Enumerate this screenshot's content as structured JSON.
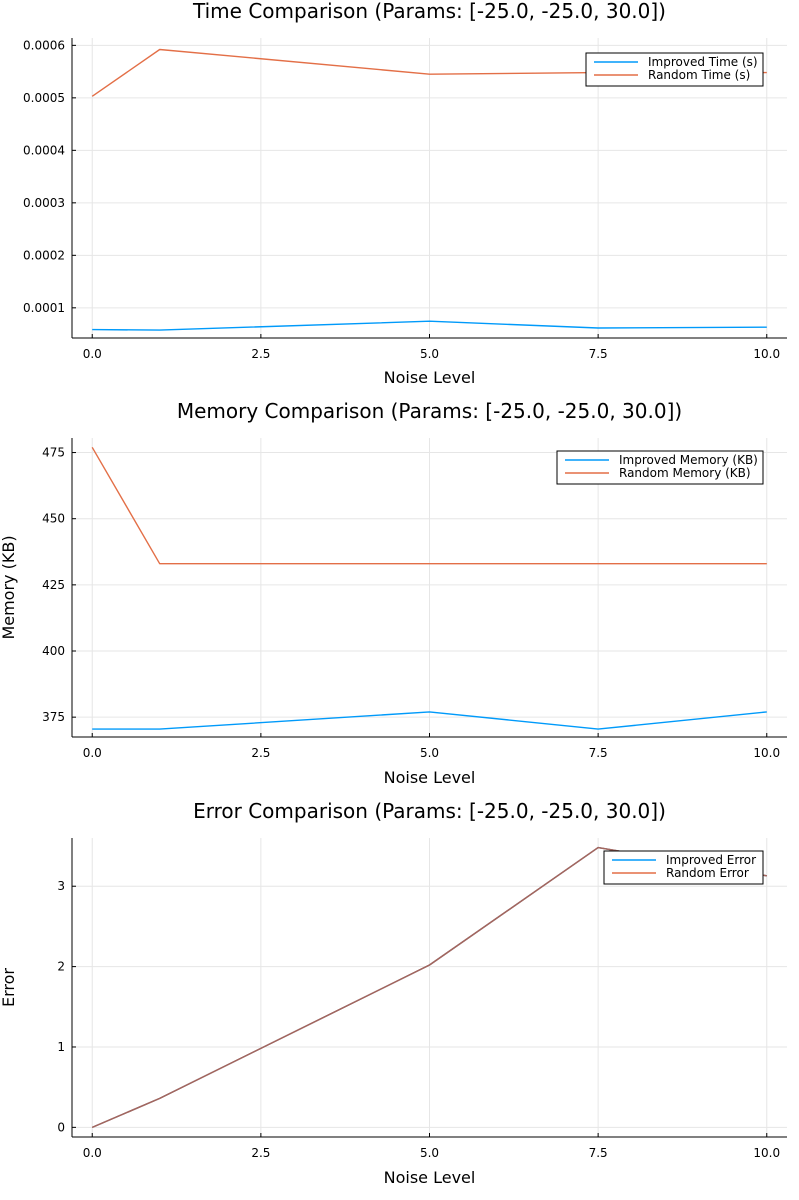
{
  "colors": {
    "improved": "#009AFA",
    "random": "#E36F47",
    "overlap": "#A2665F",
    "background": "#ffffff",
    "grid": "#e6e6e6"
  },
  "chart_data": [
    {
      "type": "line",
      "title": "Time Comparison (Params: [-25.0, -25.0, 30.0])",
      "xlabel": "Noise Level",
      "ylabel": "",
      "xlim": [
        -0.3,
        10.3
      ],
      "ylim": [
        4.25e-05,
        0.000614
      ],
      "xticks": [
        0,
        2.5,
        5,
        7.5,
        10
      ],
      "xtick_labels": [
        "0.0",
        "2.5",
        "5.0",
        "7.5",
        "10.0"
      ],
      "yticks": [
        0.0001,
        0.0002,
        0.0003,
        0.0004,
        0.0005,
        0.0006
      ],
      "ytick_labels": [
        "0.0001",
        "0.0002",
        "0.0003",
        "0.0004",
        "0.0005",
        "0.0006"
      ],
      "grid": true,
      "legend_position": "top-right",
      "x": [
        0,
        1,
        5,
        7.5,
        10
      ],
      "series": [
        {
          "name": "Improved Time (s)",
          "color": "#009AFA",
          "values": [
            5.85e-05,
            5.75e-05,
            7.45e-05,
            6.15e-05,
            6.3e-05
          ]
        },
        {
          "name": "Random Time (s)",
          "color": "#E36F47",
          "values": [
            0.000503,
            0.000592,
            0.000545,
            0.000548,
            0.000548
          ]
        }
      ]
    },
    {
      "type": "line",
      "title": "Memory Comparison (Params: [-25.0, -25.0, 30.0])",
      "xlabel": "Noise Level",
      "ylabel": "Memory (KB)",
      "xlim": [
        -0.3,
        10.3
      ],
      "ylim": [
        367.5,
        480.5
      ],
      "xticks": [
        0,
        2.5,
        5,
        7.5,
        10
      ],
      "xtick_labels": [
        "0.0",
        "2.5",
        "5.0",
        "7.5",
        "10.0"
      ],
      "yticks": [
        375,
        400,
        425,
        450,
        475
      ],
      "ytick_labels": [
        "375",
        "400",
        "425",
        "450",
        "475"
      ],
      "grid": true,
      "legend_position": "top-right",
      "x": [
        0,
        1,
        5,
        7.5,
        10
      ],
      "series": [
        {
          "name": "Improved Memory (KB)",
          "color": "#009AFA",
          "values": [
            370.5,
            370.5,
            377,
            370.5,
            377
          ]
        },
        {
          "name": "Random Memory (KB)",
          "color": "#E36F47",
          "values": [
            477,
            433,
            433,
            433,
            433
          ]
        }
      ]
    },
    {
      "type": "line",
      "title": "Error Comparison (Params: [-25.0, -25.0, 30.0])",
      "xlabel": "Noise Level",
      "ylabel": "Error",
      "xlim": [
        -0.3,
        10.3
      ],
      "ylim": [
        -0.12,
        3.6
      ],
      "xticks": [
        0,
        2.5,
        5,
        7.5,
        10
      ],
      "xtick_labels": [
        "0.0",
        "2.5",
        "5.0",
        "7.5",
        "10.0"
      ],
      "yticks": [
        0,
        1,
        2,
        3
      ],
      "ytick_labels": [
        "0",
        "1",
        "2",
        "3"
      ],
      "grid": true,
      "legend_position": "top-right",
      "x": [
        0,
        1,
        5,
        7.5,
        10
      ],
      "series": [
        {
          "name": "Improved Error",
          "color": "#009AFA",
          "values": [
            0.0,
            0.36,
            2.02,
            3.48,
            3.13
          ]
        },
        {
          "name": "Random Error",
          "color": "#E36F47",
          "values": [
            0.0,
            0.36,
            2.02,
            3.48,
            3.13
          ]
        }
      ]
    }
  ]
}
